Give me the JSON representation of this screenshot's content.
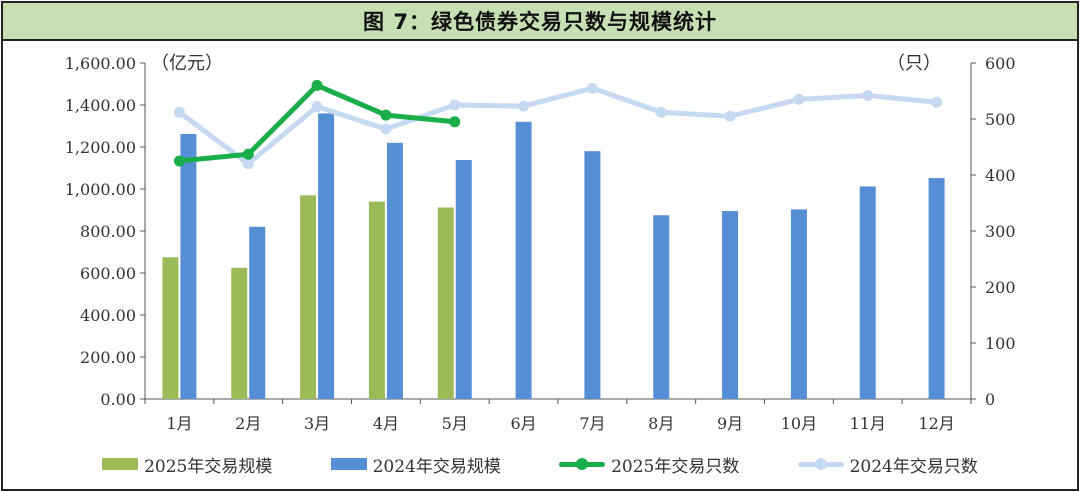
{
  "title": "图 7：绿色债券交易只数与规模统计",
  "colors": {
    "bar_2025": "#9bbb59",
    "bar_2024": "#558ed5",
    "line_2025": "#1aae4a",
    "line_2024": "#c6d9f1"
  },
  "chart_data": {
    "type": "bar+line",
    "categories": [
      "1月",
      "2月",
      "3月",
      "4月",
      "5月",
      "6月",
      "7月",
      "8月",
      "9月",
      "10月",
      "11月",
      "12月"
    ],
    "left_axis": {
      "unit_label": "（亿元）",
      "ylim": [
        0,
        1600
      ],
      "ticks": [
        "0.00",
        "200.00",
        "400.00",
        "600.00",
        "800.00",
        "1,000.00",
        "1,200.00",
        "1,400.00",
        "1,600.00"
      ]
    },
    "right_axis": {
      "unit_label": "（只）",
      "ylim": [
        0,
        600
      ],
      "ticks": [
        "0",
        "100",
        "200",
        "300",
        "400",
        "500",
        "600"
      ]
    },
    "series": [
      {
        "name": "2025年交易规模",
        "kind": "bar",
        "axis": "left",
        "values": [
          675,
          625,
          970,
          940,
          912,
          null,
          null,
          null,
          null,
          null,
          null,
          null
        ]
      },
      {
        "name": "2024年交易规模",
        "kind": "bar",
        "axis": "left",
        "values": [
          1262,
          820,
          1360,
          1220,
          1138,
          1320,
          1180,
          875,
          895,
          903,
          1012,
          1052
        ]
      },
      {
        "name": "2025年交易只数",
        "kind": "line",
        "axis": "right",
        "values": [
          425,
          437,
          560,
          507,
          495,
          null,
          null,
          null,
          null,
          null,
          null,
          null
        ]
      },
      {
        "name": "2024年交易只数",
        "kind": "line",
        "axis": "right",
        "values": [
          512,
          420,
          522,
          482,
          525,
          523,
          555,
          512,
          505,
          535,
          542,
          530
        ]
      }
    ],
    "grid": false,
    "legend_position": "bottom"
  }
}
